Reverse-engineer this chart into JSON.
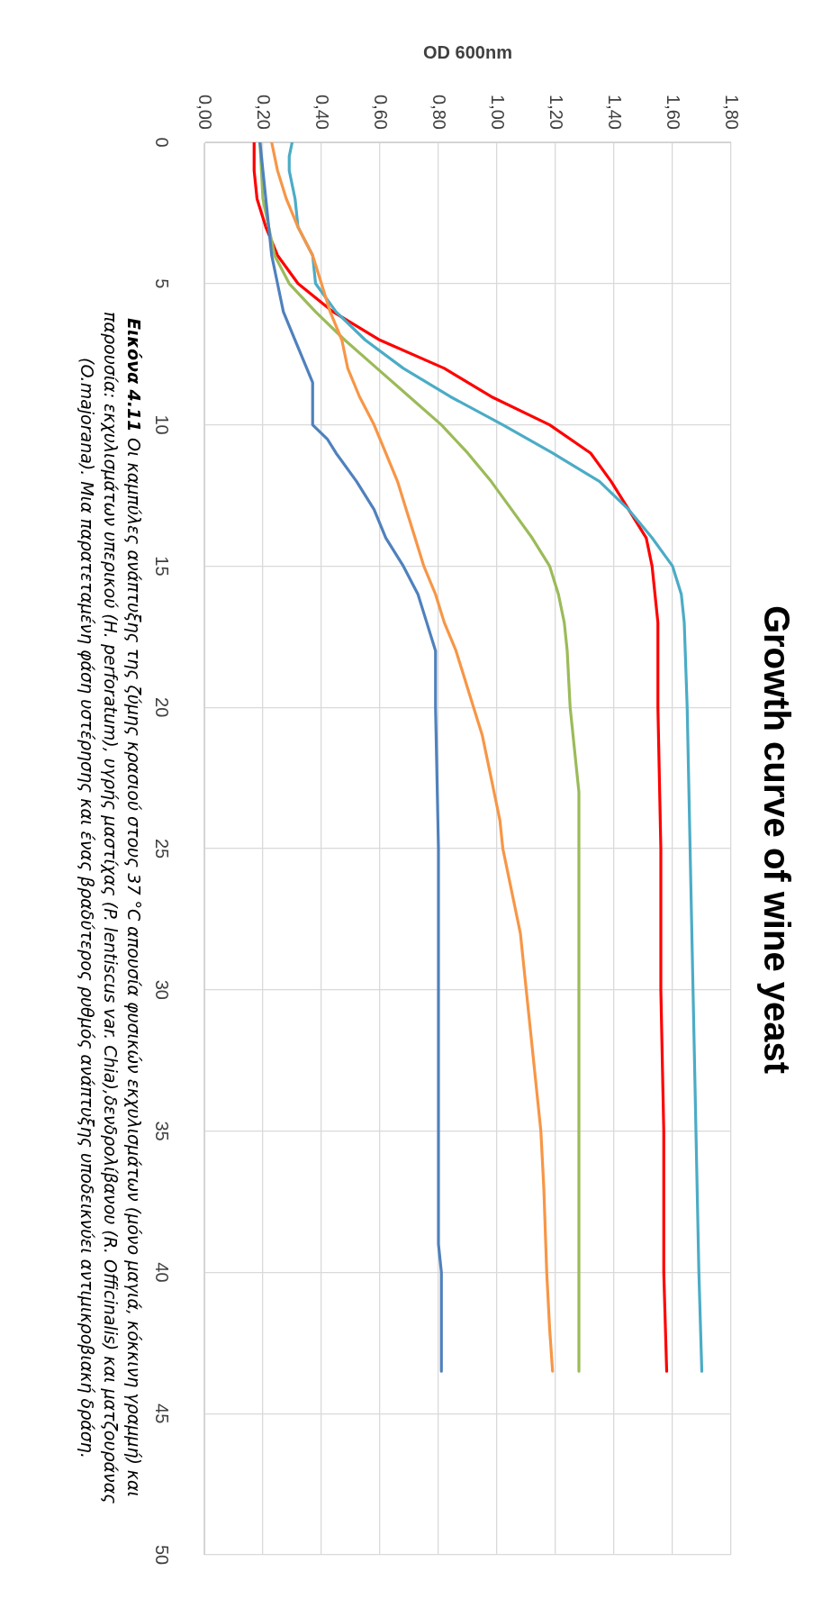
{
  "chart_data": {
    "type": "line",
    "title": "Growth curve of wine yeast",
    "xlabel": "OD 600nm",
    "annotations": [
      "Εικόνα 4.11",
      "Οι καμπύλες ανάπτυξης της ζύμης κρασιού στους 37 °C απουσία φυσικών εκχυλισμάτων (μόνο μαγιά, κόκκινη γραμμή) και παρουσία: εκχυλισμάτων υπερικού (H. perforatum), υγρής μαστίχας (P. lentiscus var. Chia),δενδρολίβανου (R. Officinalis) και ματζουράνας (O.majorana). Μια παρατεταμένη φάση υστέρησης και ένας βραδύτερος ρυθμός ανάπτυξης υποδεικνύει αντιμικροβιακή δράση."
    ],
    "ylim": [
      50,
      0
    ],
    "yticks": [
      0,
      5,
      10,
      15,
      20,
      25,
      30,
      35,
      40,
      45,
      50
    ],
    "xlim": [
      0,
      1.8
    ],
    "xticks": [
      {
        "value": 0,
        "label": "0,00"
      },
      {
        "value": 0.2,
        "label": "0,20"
      },
      {
        "value": 0.4,
        "label": "0,40"
      },
      {
        "value": 0.6,
        "label": "0,60"
      },
      {
        "value": 0.8,
        "label": "0,80"
      },
      {
        "value": 1,
        "label": "1,00"
      },
      {
        "value": 1.2,
        "label": "1,20"
      },
      {
        "value": 1.4,
        "label": "1,40"
      },
      {
        "value": 1.6,
        "label": "1,60"
      },
      {
        "value": 1.8,
        "label": "1,80"
      }
    ],
    "grid": true,
    "marker": "none",
    "line_style": "solid",
    "series": [
      {
        "color": "#4f81bd",
        "values": [
          0,
          2,
          3,
          4,
          5,
          6,
          7,
          8,
          8.5,
          10,
          10.5,
          11,
          12,
          13,
          14,
          15,
          16,
          17,
          18,
          20,
          25,
          39,
          40,
          43.5
        ],
        "x": [
          0.19,
          0.21,
          0.22,
          0.23,
          0.25,
          0.27,
          0.31,
          0.35,
          0.37,
          0.37,
          0.42,
          0.45,
          0.52,
          0.58,
          0.62,
          0.68,
          0.73,
          0.76,
          0.79,
          0.79,
          0.8,
          0.8,
          0.81,
          0.81
        ]
      },
      {
        "color": "#f79646",
        "values": [
          0,
          1,
          2,
          3,
          4,
          5,
          6,
          7,
          8,
          9,
          10,
          11,
          12,
          13,
          14,
          15,
          16,
          17,
          18,
          19,
          20,
          21,
          22,
          23,
          24,
          25,
          26,
          27,
          28,
          29,
          30,
          31,
          32,
          33,
          35,
          37,
          40,
          42,
          43.5
        ],
        "x": [
          0.23,
          0.25,
          0.28,
          0.32,
          0.37,
          0.4,
          0.43,
          0.47,
          0.49,
          0.53,
          0.58,
          0.62,
          0.66,
          0.69,
          0.72,
          0.75,
          0.79,
          0.82,
          0.86,
          0.89,
          0.92,
          0.95,
          0.97,
          0.99,
          1.01,
          1.02,
          1.04,
          1.06,
          1.08,
          1.09,
          1.1,
          1.11,
          1.12,
          1.13,
          1.15,
          1.16,
          1.17,
          1.18,
          1.19
        ]
      },
      {
        "color": "#9bbb59",
        "values": [
          0,
          2,
          3,
          4,
          5,
          6,
          7,
          8,
          9,
          10,
          11,
          12,
          13,
          14,
          15,
          16,
          17,
          18,
          20,
          22,
          23,
          43.5
        ],
        "x": [
          0.19,
          0.2,
          0.22,
          0.24,
          0.29,
          0.38,
          0.48,
          0.59,
          0.7,
          0.81,
          0.9,
          0.98,
          1.05,
          1.12,
          1.18,
          1.21,
          1.23,
          1.24,
          1.25,
          1.27,
          1.28,
          1.28
        ]
      },
      {
        "color": "#4bacc6",
        "values": [
          0,
          0.5,
          1,
          2,
          3,
          4,
          5,
          6,
          7,
          8,
          9,
          10,
          11,
          12,
          13,
          14,
          15,
          16,
          17,
          20,
          25,
          30,
          35,
          40,
          43.5
        ],
        "x": [
          0.3,
          0.29,
          0.29,
          0.31,
          0.32,
          0.37,
          0.38,
          0.45,
          0.55,
          0.68,
          0.84,
          1.02,
          1.19,
          1.35,
          1.45,
          1.53,
          1.6,
          1.63,
          1.64,
          1.65,
          1.66,
          1.67,
          1.68,
          1.69,
          1.7
        ]
      },
      {
        "color": "#ff0000",
        "values": [
          0,
          1,
          2,
          3,
          4,
          5,
          6,
          7,
          8,
          9,
          10,
          11,
          12,
          13,
          14,
          15,
          16,
          17,
          20,
          25,
          30,
          35,
          40,
          43.5
        ],
        "x": [
          0.17,
          0.17,
          0.18,
          0.21,
          0.25,
          0.32,
          0.44,
          0.6,
          0.82,
          0.98,
          1.18,
          1.32,
          1.39,
          1.45,
          1.51,
          1.53,
          1.54,
          1.55,
          1.55,
          1.56,
          1.56,
          1.57,
          1.57,
          1.58
        ]
      }
    ]
  }
}
